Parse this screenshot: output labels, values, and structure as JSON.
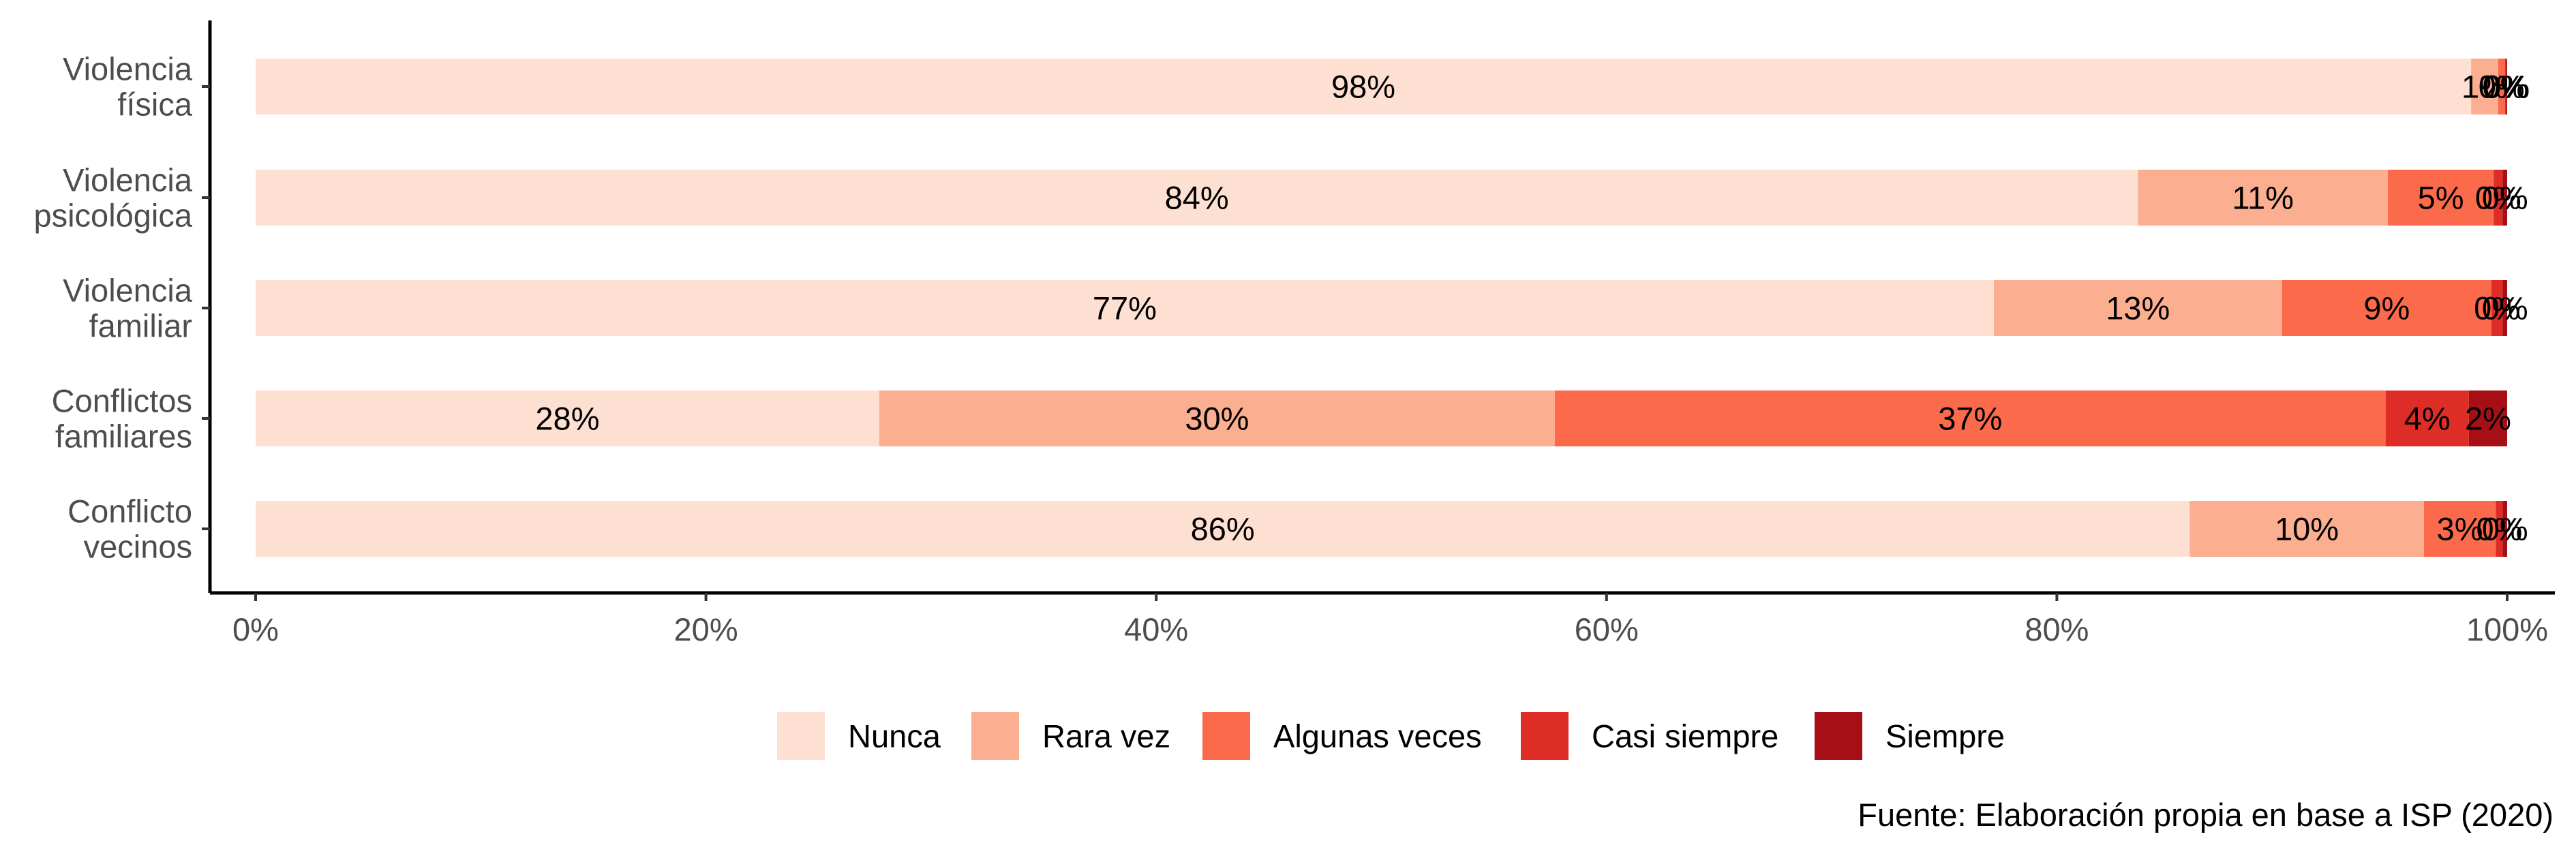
{
  "chart_data": {
    "type": "bar",
    "orientation": "horizontal",
    "stacked": true,
    "normalized": true,
    "title": "",
    "xlabel": "",
    "ylabel": "",
    "xlim": [
      0,
      100
    ],
    "x_ticks": [
      "0%",
      "20%",
      "40%",
      "60%",
      "80%",
      "100%"
    ],
    "grid": false,
    "legend_position": "bottom",
    "caption": "Fuente: Elaboración propia en base a ISP (2020)",
    "categories": [
      [
        "Violencia",
        "física"
      ],
      [
        "Violencia",
        "psicológica"
      ],
      [
        "Violencia",
        "familiar"
      ],
      [
        "Conflictos",
        "familiares"
      ],
      [
        "Conflicto",
        "vecinos"
      ]
    ],
    "series": [
      {
        "name": "Nunca",
        "color": "#FEE0D2",
        "values": [
          98.4,
          83.6,
          77.2,
          27.7,
          85.9
        ],
        "labels": [
          "98%",
          "84%",
          "77%",
          "28%",
          "86%"
        ]
      },
      {
        "name": "Rara vez",
        "color": "#FCAE91",
        "values": [
          1.2,
          11.1,
          12.8,
          30.0,
          10.4
        ],
        "labels": [
          "1%",
          "11%",
          "13%",
          "30%",
          "10%"
        ]
      },
      {
        "name": "Algunas veces",
        "color": "#FB6A4A",
        "values": [
          0.3,
          4.7,
          9.3,
          36.9,
          3.2
        ],
        "labels": [
          "0%",
          "5%",
          "9%",
          "37%",
          "3%"
        ]
      },
      {
        "name": "Casi siempre",
        "color": "#DE2D26",
        "values": [
          0.05,
          0.4,
          0.5,
          3.7,
          0.3
        ],
        "labels": [
          "0%",
          "0%",
          "0%",
          "4%",
          "0%"
        ]
      },
      {
        "name": "Siempre",
        "color": "#A50F15",
        "values": [
          0.05,
          0.2,
          0.2,
          1.7,
          0.2
        ],
        "labels": [
          "0%",
          "0%",
          "0%",
          "2%",
          "0%"
        ]
      }
    ]
  }
}
